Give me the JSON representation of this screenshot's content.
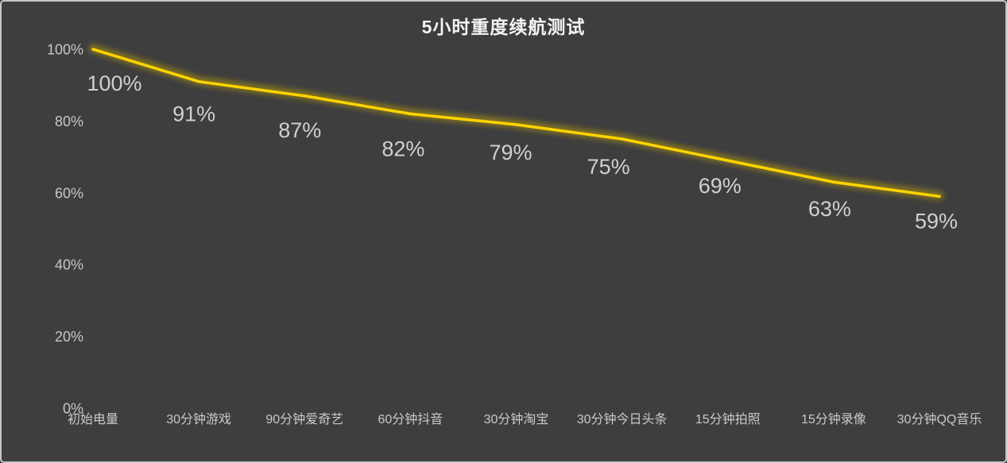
{
  "chart": {
    "colors": {
      "background": "#3e3e3e",
      "border": "#c6c6c6",
      "line": "#ffd400",
      "line_glow": "#d4b500",
      "axis_text": "#c6c6c6",
      "data_label_text": "#d0d0d0",
      "title_text": "#f4f4f4"
    }
  },
  "chart_data": {
    "type": "line",
    "title": "5小时重度续航测试",
    "categories": [
      "初始电量",
      "30分钟游戏",
      "90分钟爱奇艺",
      "60分钟抖音",
      "30分钟淘宝",
      "30分钟今日头条",
      "15分钟拍照",
      "15分钟录像",
      "30分钟QQ音乐"
    ],
    "values": [
      100,
      91,
      87,
      82,
      79,
      75,
      69,
      63,
      59
    ],
    "data_labels": [
      "100%",
      "91%",
      "87%",
      "82%",
      "79%",
      "75%",
      "69%",
      "63%",
      "59%"
    ],
    "xlabel": "",
    "ylabel": "",
    "ylim": [
      0,
      100
    ],
    "ytick_values": [
      100,
      80,
      60,
      40,
      20,
      0
    ],
    "ytick_labels": [
      "100%",
      "80%",
      "60%",
      "40%",
      "20%",
      "0%"
    ],
    "grid": false,
    "legend": "none",
    "line_color": "#ffd400"
  }
}
